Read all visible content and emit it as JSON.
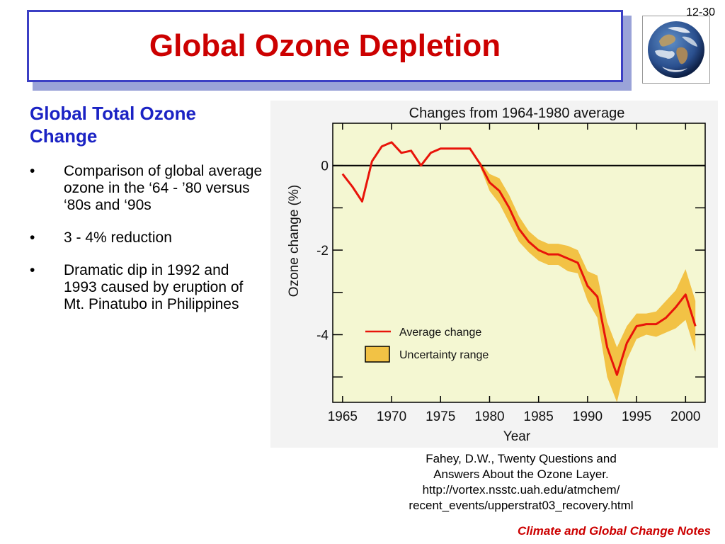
{
  "slide_number": "12-30",
  "title": "Global Ozone Depletion",
  "subheading": "Global Total Ozone Change",
  "bullets": [
    "Comparison of global average ozone in the ‘64 - ’80 versus ‘80s and ‘90s",
    "3 - 4% reduction",
    "Dramatic dip in 1992 and 1993 caused by eruption of Mt. Pinatubo in Philippines"
  ],
  "citation_lines": [
    "Fahey, D.W., Twenty Questions and",
    "Answers About the Ozone Layer.",
    "http://vortex.nsstc.uah.edu/atmchem/",
    "recent_events/upperstrat03_recovery.html"
  ],
  "footer": "Climate and Global Change Notes",
  "colors": {
    "title": "#cc0000",
    "subheading": "#1b23c4",
    "title_border": "#3b3fc4",
    "plot_background": "#f4f7d2",
    "average_line": "#e8140a",
    "uncertainty_fill": "#f2c245"
  },
  "icons": {
    "globe": "earth-globe-icon"
  },
  "chart_data": {
    "type": "line",
    "title": "Changes from 1964-1980 average",
    "xlabel": "Year",
    "ylabel": "Ozone change (%)",
    "xlim": [
      1964,
      2002
    ],
    "ylim": [
      -5.6,
      1.0
    ],
    "xticks": [
      1965,
      1970,
      1975,
      1980,
      1985,
      1990,
      1995,
      2000
    ],
    "yticks": [
      0,
      -2,
      -4
    ],
    "ytick_labels": [
      "0",
      "-2",
      "-4"
    ],
    "zero_line": true,
    "grid": false,
    "legend": {
      "placement": "bottom-center",
      "entries": [
        "Average change",
        "Uncertainty range"
      ]
    },
    "series": [
      {
        "name": "Average change",
        "x": [
          1965,
          1966,
          1967,
          1968,
          1969,
          1970,
          1971,
          1972,
          1973,
          1974,
          1975,
          1976,
          1977,
          1978,
          1979,
          1980,
          1981,
          1982,
          1983,
          1984,
          1985,
          1986,
          1987,
          1988,
          1989,
          1990,
          1991,
          1992,
          1993,
          1994,
          1995,
          1996,
          1997,
          1998,
          1999,
          2000,
          2001
        ],
        "y": [
          -0.2,
          -0.5,
          -0.85,
          0.1,
          0.45,
          0.55,
          0.3,
          0.35,
          0.0,
          0.3,
          0.4,
          0.4,
          0.4,
          0.4,
          0.05,
          -0.4,
          -0.6,
          -1.0,
          -1.5,
          -1.8,
          -2.0,
          -2.1,
          -2.1,
          -2.2,
          -2.3,
          -2.85,
          -3.1,
          -4.3,
          -4.95,
          -4.2,
          -3.8,
          -3.75,
          -3.75,
          -3.6,
          -3.35,
          -3.05,
          -3.8
        ]
      }
    ],
    "uncertainty": {
      "name": "Uncertainty range",
      "x": [
        1979,
        1980,
        1981,
        1982,
        1983,
        1984,
        1985,
        1986,
        1987,
        1988,
        1989,
        1990,
        1991,
        1992,
        1993,
        1994,
        1995,
        1996,
        1997,
        1998,
        1999,
        2000,
        2001
      ],
      "low": [
        0.0,
        -0.6,
        -0.9,
        -1.35,
        -1.8,
        -2.05,
        -2.25,
        -2.35,
        -2.35,
        -2.5,
        -2.55,
        -3.2,
        -3.6,
        -5.0,
        -5.6,
        -4.6,
        -4.1,
        -4.0,
        -4.05,
        -3.95,
        -3.85,
        -3.65,
        -4.4
      ],
      "high": [
        0.1,
        -0.2,
        -0.3,
        -0.7,
        -1.2,
        -1.55,
        -1.75,
        -1.85,
        -1.85,
        -1.9,
        -2.0,
        -2.5,
        -2.6,
        -3.7,
        -4.3,
        -3.8,
        -3.5,
        -3.5,
        -3.45,
        -3.2,
        -2.95,
        -2.45,
        -3.2
      ]
    }
  }
}
